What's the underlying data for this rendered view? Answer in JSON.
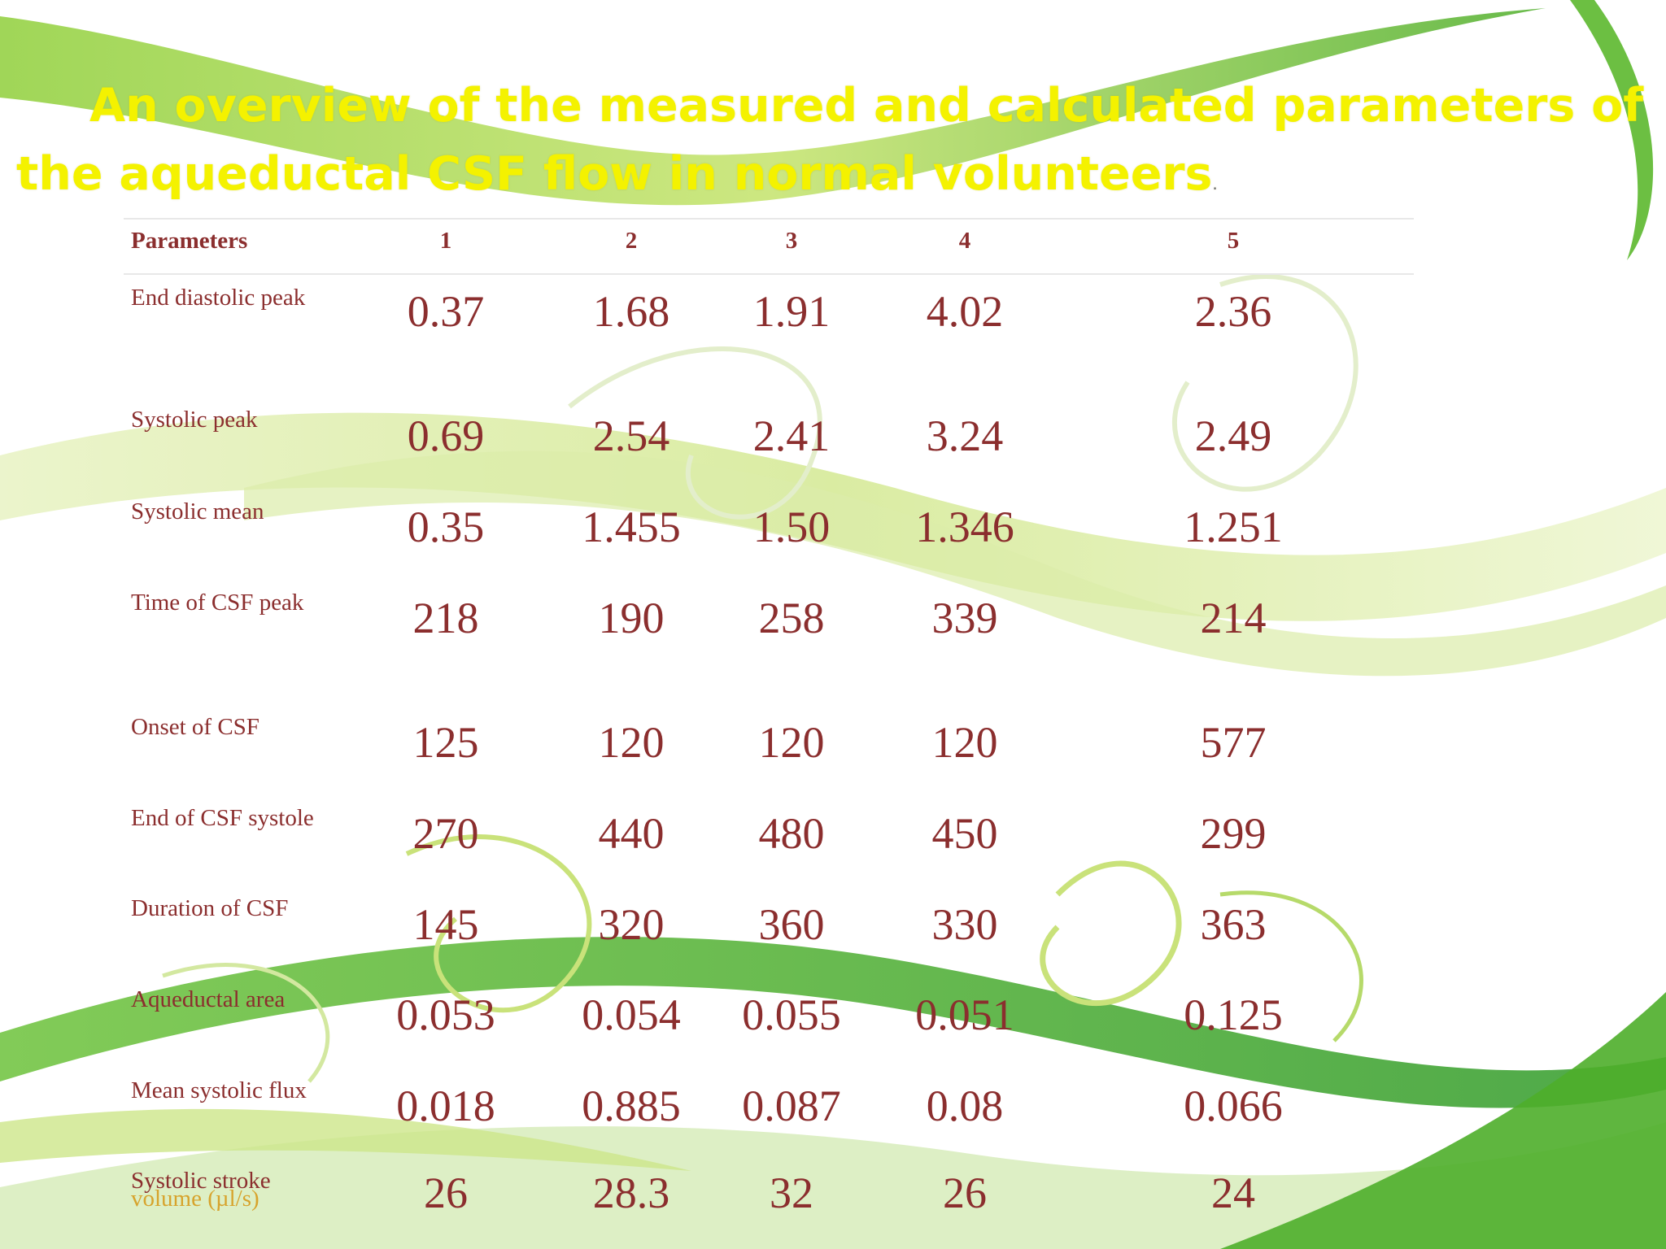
{
  "title": {
    "line1": "An overview of the measured and calculated parameters of",
    "line2": "the aqueductal CSF flow in normal volunteers",
    "trailing": "."
  },
  "table": {
    "headers": [
      "Parameters",
      "1",
      "2",
      "3",
      "4",
      "5"
    ],
    "rows": [
      {
        "label": "End diastolic peak",
        "values": [
          "0.37",
          "1.68",
          "1.91",
          "4.02",
          "2.36"
        ]
      },
      {
        "label": "Systolic peak",
        "values": [
          "0.69",
          "2.54",
          "2.41",
          "3.24",
          "2.49"
        ]
      },
      {
        "label": "Systolic mean",
        "values": [
          "0.35",
          "1.455",
          "1.50",
          "1.346",
          "1.251"
        ]
      },
      {
        "label": "Time of CSF peak",
        "values": [
          "218",
          "190",
          "258",
          "339",
          "214"
        ]
      },
      {
        "label": "Onset of CSF",
        "values": [
          "125",
          "120",
          "120",
          "120",
          "577"
        ]
      },
      {
        "label": "End of CSF systole",
        "values": [
          "270",
          "440",
          "480",
          "450",
          "299"
        ]
      },
      {
        "label": "Duration of CSF",
        "values": [
          "145",
          "320",
          "360",
          "330",
          "363"
        ]
      },
      {
        "label": "Aqueductal area",
        "values": [
          "0.053",
          "0.054",
          "0.055",
          "0.051",
          "0.125"
        ]
      },
      {
        "label": "Mean systolic flux",
        "values": [
          "0.018",
          "0.885",
          "0.087",
          "0.08",
          "0.066"
        ]
      },
      {
        "label": "Systolic stroke",
        "sublabel": "volume (µl/s)",
        "values": [
          "26",
          "28.3",
          "32",
          "26",
          "24"
        ]
      }
    ]
  },
  "colors": {
    "title": "#f4f200",
    "text": "#8b2e2e",
    "sublabel": "#d7a32c",
    "swoosh_dark": "#5cb82e",
    "swoosh_light": "#c9e27a"
  }
}
